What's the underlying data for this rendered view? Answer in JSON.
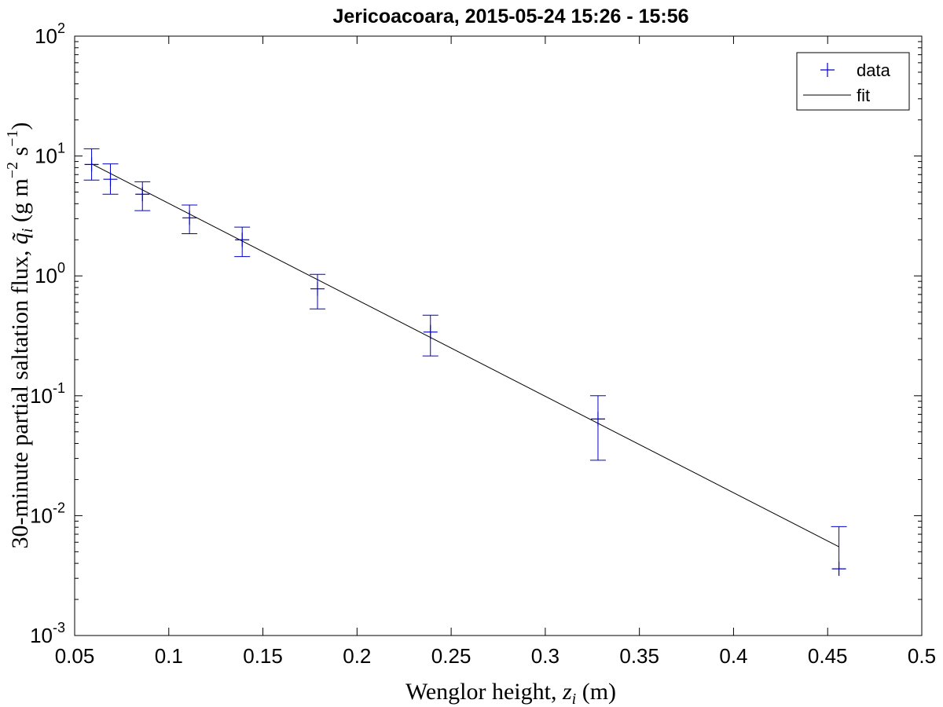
{
  "chart_data": {
    "type": "scatter",
    "title": "Jericoacoara, 2015-05-24 15:26 - 15:56",
    "xlabel": {
      "prefix": "Wenglor height, ",
      "var": "z",
      "sub": "i",
      "suffix": " (m)"
    },
    "ylabel": {
      "prefix": "30-minute partial saltation flux, ",
      "var": "q̃",
      "sub": "i",
      "units_open": " (g m",
      "exp1": "−2",
      "units_mid": " s",
      "exp2": "−1",
      "units_close": ")"
    },
    "xlim": [
      0.05,
      0.5
    ],
    "ylim": [
      0.001,
      100
    ],
    "y_scale": "log",
    "x_ticks": [
      0.05,
      0.1,
      0.15,
      0.2,
      0.25,
      0.3,
      0.35,
      0.4,
      0.45,
      0.5
    ],
    "x_tick_labels": [
      "0.05",
      "0.1",
      "0.15",
      "0.2",
      "0.25",
      "0.3",
      "0.35",
      "0.4",
      "0.45",
      "0.5"
    ],
    "y_ticks": [
      {
        "value": 100,
        "base": "10",
        "exp": "2"
      },
      {
        "value": 10,
        "base": "10",
        "exp": "1"
      },
      {
        "value": 1,
        "base": "10",
        "exp": "0"
      },
      {
        "value": 0.1,
        "base": "10",
        "exp": "-1"
      },
      {
        "value": 0.01,
        "base": "10",
        "exp": "-2"
      },
      {
        "value": 0.001,
        "base": "10",
        "exp": "-3"
      }
    ],
    "grid": false,
    "legend": {
      "position": "top-right",
      "entries": [
        {
          "label": "data",
          "marker": "plus",
          "color": "#0000cc"
        },
        {
          "label": "fit",
          "marker": "line",
          "color": "#000000"
        }
      ]
    },
    "series": [
      {
        "name": "data",
        "color": "#0000cc",
        "points": [
          {
            "x": 0.059,
            "y": 8.5,
            "err_low": 6.3,
            "err_high": 11.5
          },
          {
            "x": 0.069,
            "y": 6.4,
            "err_low": 4.8,
            "err_high": 8.6
          },
          {
            "x": 0.086,
            "y": 4.8,
            "err_low": 3.5,
            "err_high": 6.1
          },
          {
            "x": 0.111,
            "y": 3.05,
            "err_low": 2.25,
            "err_high": 3.9
          },
          {
            "x": 0.139,
            "y": 2.0,
            "err_low": 1.45,
            "err_high": 2.55
          },
          {
            "x": 0.179,
            "y": 0.78,
            "err_low": 0.53,
            "err_high": 1.03
          },
          {
            "x": 0.239,
            "y": 0.34,
            "err_low": 0.215,
            "err_high": 0.47
          },
          {
            "x": 0.328,
            "y": 0.064,
            "err_low": 0.029,
            "err_high": 0.1
          },
          {
            "x": 0.456,
            "y": 0.0036,
            "err_low": null,
            "err_high": 0.0081
          }
        ]
      },
      {
        "name": "fit",
        "color": "#000000",
        "x": [
          0.059,
          0.456
        ],
        "y": [
          8.6,
          0.0055
        ]
      }
    ]
  }
}
